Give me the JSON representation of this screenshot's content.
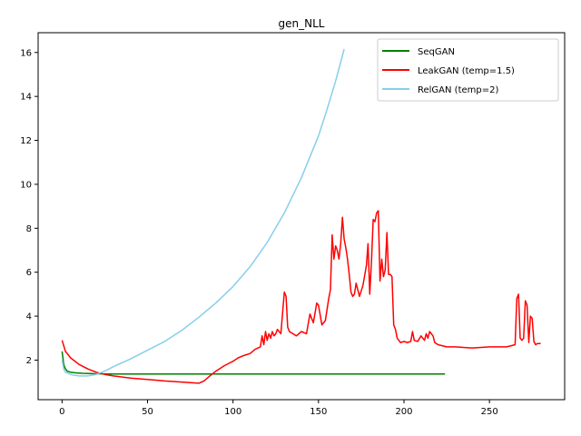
{
  "chart_data": {
    "type": "line",
    "title": "gen_NLL",
    "xlabel": "",
    "ylabel": "",
    "xlim": [
      -14,
      294
    ],
    "ylim": [
      0.2,
      16.9
    ],
    "xticks": [
      0,
      50,
      100,
      150,
      200,
      250
    ],
    "yticks": [
      2,
      4,
      6,
      8,
      10,
      12,
      14,
      16
    ],
    "grid": false,
    "legend_position": "top-right",
    "series": [
      {
        "name": "SeqGAN",
        "color": "#008000",
        "x": [
          0,
          1,
          2,
          3,
          5,
          8,
          12,
          20,
          30,
          50,
          80,
          100,
          150,
          200,
          224
        ],
        "y": [
          2.4,
          1.8,
          1.6,
          1.5,
          1.45,
          1.42,
          1.4,
          1.38,
          1.37,
          1.37,
          1.37,
          1.37,
          1.37,
          1.37,
          1.37
        ]
      },
      {
        "name": "LeakGAN (temp=1.5)",
        "color": "#ff0000",
        "x": [
          0,
          2,
          5,
          10,
          15,
          20,
          25,
          30,
          40,
          50,
          60,
          70,
          80,
          83,
          86,
          90,
          95,
          100,
          103,
          106,
          110,
          113,
          116,
          117,
          118,
          119,
          120,
          121,
          122,
          123,
          124,
          125,
          126,
          128,
          130,
          131,
          132,
          133,
          135,
          137,
          140,
          143,
          145,
          147,
          149,
          150,
          152,
          154,
          156,
          157,
          158,
          159,
          160,
          161,
          162,
          163,
          164,
          165,
          166,
          167,
          168,
          169,
          170,
          171,
          172,
          174,
          176,
          178,
          179,
          180,
          181,
          182,
          183,
          184,
          185,
          186,
          187,
          188,
          189,
          190,
          191,
          192,
          193,
          194,
          195,
          196,
          197,
          198,
          200,
          202,
          204,
          205,
          206,
          208,
          210,
          212,
          213,
          214,
          215,
          216,
          217,
          218,
          220,
          225,
          230,
          240,
          250,
          260,
          265,
          266,
          267,
          268,
          269,
          270,
          271,
          272,
          273,
          274,
          275,
          276,
          277,
          278,
          280
        ],
        "y": [
          2.9,
          2.4,
          2.1,
          1.8,
          1.6,
          1.45,
          1.35,
          1.28,
          1.18,
          1.12,
          1.05,
          1.0,
          0.95,
          1.05,
          1.25,
          1.5,
          1.75,
          1.95,
          2.1,
          2.2,
          2.3,
          2.5,
          2.6,
          3.1,
          2.7,
          3.3,
          2.9,
          3.2,
          3.0,
          3.3,
          3.1,
          3.2,
          3.4,
          3.2,
          5.1,
          4.9,
          3.5,
          3.3,
          3.2,
          3.1,
          3.3,
          3.2,
          4.1,
          3.7,
          4.6,
          4.5,
          3.6,
          3.8,
          4.8,
          5.2,
          7.7,
          6.6,
          7.2,
          7.0,
          6.6,
          7.3,
          8.5,
          7.5,
          7.1,
          6.6,
          5.9,
          5.1,
          4.9,
          5.0,
          5.5,
          4.9,
          5.4,
          6.3,
          7.3,
          5.0,
          6.5,
          8.4,
          8.3,
          8.7,
          8.8,
          5.6,
          6.6,
          5.8,
          6.1,
          7.8,
          5.9,
          5.9,
          5.8,
          3.6,
          3.4,
          3.0,
          2.9,
          2.8,
          2.85,
          2.8,
          2.85,
          3.3,
          2.9,
          2.85,
          3.1,
          2.9,
          3.2,
          3.0,
          3.3,
          3.2,
          3.1,
          2.8,
          2.7,
          2.6,
          2.6,
          2.55,
          2.6,
          2.6,
          2.7,
          4.8,
          5.0,
          3.0,
          2.9,
          3.0,
          4.7,
          4.5,
          2.8,
          4.0,
          3.9,
          2.85,
          2.7,
          2.75,
          2.75
        ]
      },
      {
        "name": "RelGAN (temp=2)",
        "color": "#87ceeb",
        "x": [
          0,
          1,
          2,
          4,
          6,
          10,
          15,
          20,
          25,
          30,
          40,
          50,
          60,
          70,
          80,
          90,
          100,
          110,
          120,
          130,
          140,
          150,
          155,
          160,
          165
        ],
        "y": [
          2.0,
          1.6,
          1.45,
          1.38,
          1.33,
          1.28,
          1.28,
          1.35,
          1.5,
          1.7,
          2.05,
          2.45,
          2.85,
          3.35,
          3.95,
          4.6,
          5.35,
          6.25,
          7.35,
          8.7,
          10.3,
          12.2,
          13.4,
          14.7,
          16.15
        ]
      }
    ]
  }
}
